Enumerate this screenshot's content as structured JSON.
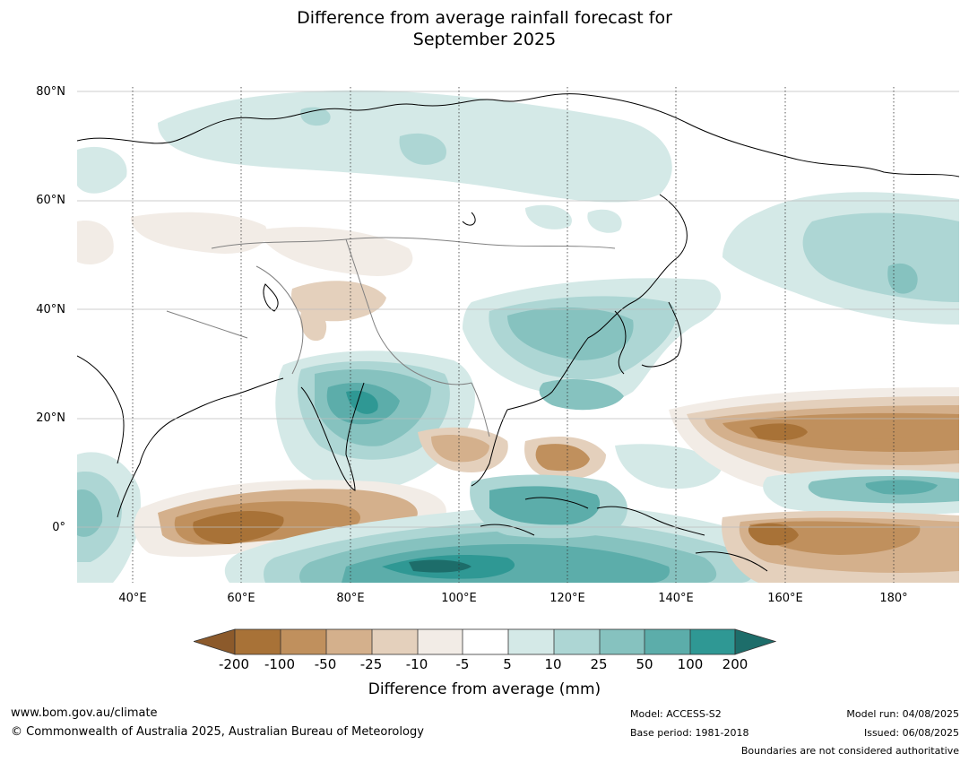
{
  "title_line1": "Difference from average rainfall forecast for",
  "title_line2": "September 2025",
  "lat_labels": [
    "80°N",
    "60°N",
    "40°N",
    "20°N",
    "0°"
  ],
  "lon_labels": [
    "40°E",
    "60°E",
    "80°E",
    "100°E",
    "120°E",
    "140°E",
    "160°E",
    "180°"
  ],
  "colorbar": {
    "labels": [
      "-200",
      "-100",
      "-50",
      "-25",
      "-10",
      "-5",
      "5",
      "10",
      "25",
      "50",
      "100",
      "200"
    ],
    "colors": [
      "#8c5a2b",
      "#a87237",
      "#c0905d",
      "#d4b08c",
      "#e4d0bc",
      "#f2ece6",
      "#ffffff",
      "#d4e9e7",
      "#add6d4",
      "#86c2bf",
      "#5cadaa",
      "#2f9894",
      "#1d6d6a"
    ],
    "title": "Difference from average (mm)"
  },
  "footer": {
    "website": "www.bom.gov.au/climate",
    "copyright": "© Commonwealth of Australia 2025, Australian Bureau of Meteorology",
    "model": "Model: ACCESS-S2",
    "base_period": "Base period: 1981-2018",
    "model_run": "Model run: 04/08/2025",
    "issued": "Issued: 06/08/2025",
    "boundaries": "Boundaries are not considered authoritative"
  }
}
